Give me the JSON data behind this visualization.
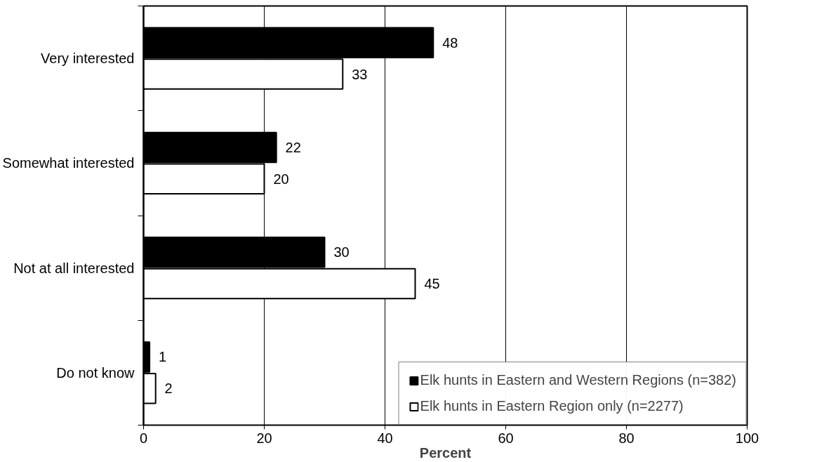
{
  "chart_data": {
    "type": "bar",
    "orientation": "horizontal",
    "xlabel": "Percent",
    "categories": [
      "Very interested",
      "Somewhat interested",
      "Not at all interested",
      "Do not know"
    ],
    "series": [
      {
        "name": "Elk hunts in Eastern and Western Regions (n=382)",
        "color": "#000000",
        "values": [
          48,
          22,
          30,
          1
        ]
      },
      {
        "name": "Elk hunts in Eastern Region only (n=2277)",
        "color": "#ffffff",
        "values": [
          33,
          20,
          45,
          2
        ]
      }
    ],
    "xlim": [
      0,
      100
    ],
    "xticks": [
      0,
      20,
      40,
      60,
      80,
      100
    ],
    "grid": "x",
    "legend": "bottom right",
    "data_labels": true
  }
}
